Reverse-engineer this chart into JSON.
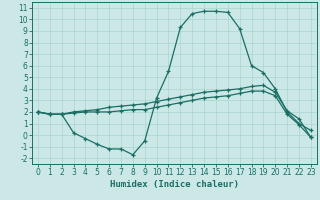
{
  "xlabel": "Humidex (Indice chaleur)",
  "bg_color": "#cce8e6",
  "line_color": "#1a6e65",
  "grid_color": "#aad4d0",
  "xlim": [
    -0.5,
    23.5
  ],
  "ylim": [
    -2.5,
    11.5
  ],
  "xticks": [
    0,
    1,
    2,
    3,
    4,
    5,
    6,
    7,
    8,
    9,
    10,
    11,
    12,
    13,
    14,
    15,
    16,
    17,
    18,
    19,
    20,
    21,
    22,
    23
  ],
  "yticks": [
    -2,
    -1,
    0,
    1,
    2,
    3,
    4,
    5,
    6,
    7,
    8,
    9,
    10,
    11
  ],
  "line1_x": [
    0,
    1,
    2,
    3,
    4,
    5,
    6,
    7,
    8,
    9,
    10,
    11,
    12,
    13,
    14,
    15,
    16,
    17,
    18,
    19,
    20,
    21,
    22,
    23
  ],
  "line1_y": [
    2.0,
    1.8,
    1.8,
    0.2,
    -0.3,
    -0.8,
    -1.2,
    -1.2,
    -1.7,
    -0.5,
    3.2,
    5.5,
    9.3,
    10.5,
    10.7,
    10.7,
    10.6,
    9.2,
    6.0,
    5.4,
    4.0,
    2.0,
    1.0,
    0.4
  ],
  "line2_x": [
    0,
    1,
    2,
    3,
    4,
    5,
    6,
    7,
    8,
    9,
    10,
    11,
    12,
    13,
    14,
    15,
    16,
    17,
    18,
    19,
    20,
    21,
    22,
    23
  ],
  "line2_y": [
    2.0,
    1.8,
    1.8,
    2.0,
    2.1,
    2.2,
    2.4,
    2.5,
    2.6,
    2.7,
    2.9,
    3.1,
    3.3,
    3.5,
    3.7,
    3.8,
    3.9,
    4.0,
    4.2,
    4.3,
    3.7,
    2.1,
    1.4,
    -0.2
  ],
  "line3_x": [
    0,
    1,
    2,
    3,
    4,
    5,
    6,
    7,
    8,
    9,
    10,
    11,
    12,
    13,
    14,
    15,
    16,
    17,
    18,
    19,
    20,
    21,
    22,
    23
  ],
  "line3_y": [
    2.0,
    1.8,
    1.8,
    1.9,
    2.0,
    2.0,
    2.0,
    2.1,
    2.2,
    2.2,
    2.4,
    2.6,
    2.8,
    3.0,
    3.2,
    3.3,
    3.4,
    3.6,
    3.8,
    3.8,
    3.4,
    1.8,
    0.9,
    -0.2
  ],
  "tick_fontsize": 5.5,
  "xlabel_fontsize": 6.5
}
